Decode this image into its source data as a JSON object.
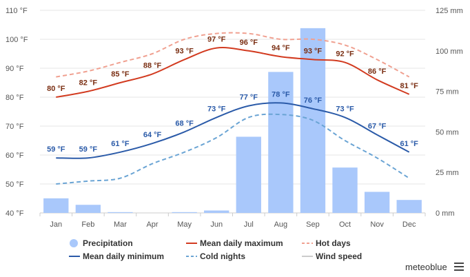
{
  "chart_data": {
    "type": "bar+line",
    "categories": [
      "Jan",
      "Feb",
      "Mar",
      "Apr",
      "May",
      "Jun",
      "Jul",
      "Aug",
      "Sep",
      "Oct",
      "Nov",
      "Dec"
    ],
    "left_axis": {
      "unit": "°F",
      "min": 40,
      "max": 110,
      "ticks": [
        "40 °F",
        "50 °F",
        "60 °F",
        "70 °F",
        "80 °F",
        "90 °F",
        "100 °F",
        "110 °F"
      ]
    },
    "right_axis": {
      "unit": "mm",
      "min": 0,
      "max": 125,
      "ticks": [
        "0 mm",
        "25 mm",
        "50 mm",
        "75 mm",
        "100 mm",
        "125 mm"
      ]
    },
    "series": [
      {
        "name": "Precipitation",
        "kind": "bar",
        "axis": "right",
        "color": "#a9c8fb",
        "values": [
          9,
          5,
          0.5,
          0,
          0.5,
          1.5,
          47,
          87,
          114,
          28,
          13,
          8
        ]
      },
      {
        "name": "Mean daily maximum",
        "kind": "line",
        "axis": "left",
        "color": "#d23a1f",
        "values": [
          80,
          82,
          85,
          88,
          93,
          97,
          96,
          94,
          93,
          92,
          86,
          81
        ],
        "labels": [
          "80 °F",
          "82 °F",
          "85 °F",
          "88 °F",
          "93 °F",
          "97 °F",
          "96 °F",
          "94 °F",
          "93 °F",
          "92 °F",
          "86 °F",
          "81 °F"
        ]
      },
      {
        "name": "Hot days",
        "kind": "dashed-line",
        "axis": "left",
        "color": "#f0a090",
        "values": [
          87,
          89,
          92,
          95,
          100,
          102,
          102,
          100,
          100,
          98,
          93,
          87
        ]
      },
      {
        "name": "Mean daily minimum",
        "kind": "line",
        "axis": "left",
        "color": "#2a5aa8",
        "values": [
          59,
          59,
          61,
          64,
          68,
          73,
          77,
          78,
          76,
          73,
          67,
          61
        ],
        "labels": [
          "59 °F",
          "59 °F",
          "61 °F",
          "64 °F",
          "68 °F",
          "73 °F",
          "77 °F",
          "78 °F",
          "76 °F",
          "73 °F",
          "67 °F",
          "61 °F"
        ]
      },
      {
        "name": "Cold nights",
        "kind": "dashed-line",
        "axis": "left",
        "color": "#6aa4d4",
        "values": [
          50,
          51,
          52,
          57,
          61,
          66,
          73,
          74,
          72,
          65,
          59,
          52
        ]
      }
    ],
    "legend": {
      "placement": "bottom",
      "items": [
        {
          "label": "Precipitation",
          "symbol": "circle",
          "color": "#a9c8fb"
        },
        {
          "label": "Mean daily maximum",
          "symbol": "line",
          "color": "#d23a1f"
        },
        {
          "label": "Hot days",
          "symbol": "dashed",
          "color": "#f0a090"
        },
        {
          "label": "Mean daily minimum",
          "symbol": "line",
          "color": "#2a5aa8"
        },
        {
          "label": "Cold nights",
          "symbol": "dashed",
          "color": "#6aa4d4"
        },
        {
          "label": "Wind speed",
          "symbol": "line",
          "color": "#cccccc",
          "disabled": true
        }
      ]
    },
    "label_colors": {
      "max": "#7a2e12",
      "min": "#2a5aa8"
    }
  },
  "branding": {
    "text": "meteoblue"
  }
}
